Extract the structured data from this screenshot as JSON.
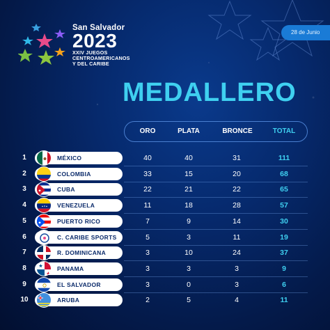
{
  "brand": {
    "city": "San Salvador",
    "year": "2023",
    "subtitle_lines": [
      "XXIV JUEGOS",
      "CENTROAMERICANOS",
      "Y DEL CARIBE"
    ]
  },
  "date": "28 de Junio",
  "title": "MEDALLERO",
  "headers": {
    "gold": "ORO",
    "silver": "PLATA",
    "bronze": "BRONCE",
    "total": "TOTAL"
  },
  "rows": [
    {
      "rank": "1",
      "country": "MÉXICO",
      "gold": "40",
      "silver": "40",
      "bronze": "31",
      "total": "111",
      "flag": "mexico-flag-icon"
    },
    {
      "rank": "2",
      "country": "COLOMBIA",
      "gold": "33",
      "silver": "15",
      "bronze": "20",
      "total": "68",
      "flag": "colombia-flag-icon"
    },
    {
      "rank": "3",
      "country": "CUBA",
      "gold": "22",
      "silver": "21",
      "bronze": "22",
      "total": "65",
      "flag": "cuba-flag-icon"
    },
    {
      "rank": "4",
      "country": "VENEZUELA",
      "gold": "11",
      "silver": "18",
      "bronze": "28",
      "total": "57",
      "flag": "venezuela-flag-icon"
    },
    {
      "rank": "5",
      "country": "PUERTO RICO",
      "gold": "7",
      "silver": "9",
      "bronze": "14",
      "total": "30",
      "flag": "puerto-rico-flag-icon"
    },
    {
      "rank": "6",
      "country": "C. CARIBE SPORTS",
      "gold": "5",
      "silver": "3",
      "bronze": "11",
      "total": "19",
      "flag": "caribe-sports-flag-icon"
    },
    {
      "rank": "7",
      "country": "R. DOMINICANA",
      "gold": "3",
      "silver": "10",
      "bronze": "24",
      "total": "37",
      "flag": "dominican-republic-flag-icon"
    },
    {
      "rank": "8",
      "country": "PANAMA",
      "gold": "3",
      "silver": "3",
      "bronze": "3",
      "total": "9",
      "flag": "panama-flag-icon"
    },
    {
      "rank": "9",
      "country": "EL SALVADOR",
      "gold": "3",
      "silver": "0",
      "bronze": "3",
      "total": "6",
      "flag": "el-salvador-flag-icon"
    },
    {
      "rank": "10",
      "country": "ARUBA",
      "gold": "2",
      "silver": "5",
      "bronze": "4",
      "total": "11",
      "flag": "aruba-flag-icon"
    }
  ],
  "colors": {
    "accent": "#3fd0f0",
    "background": "#062a6e",
    "pill": "#ffffff"
  }
}
